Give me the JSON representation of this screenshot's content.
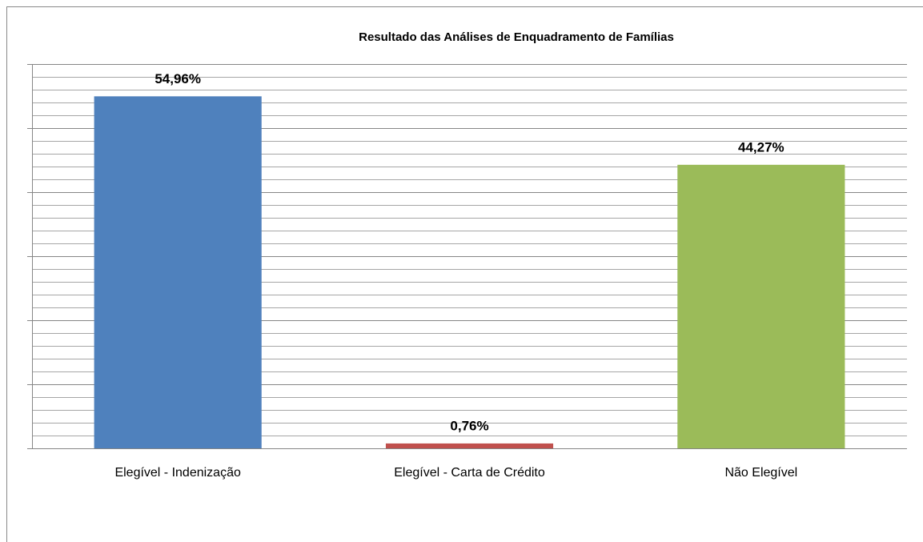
{
  "chart_data": {
    "type": "bar",
    "title": "Resultado das Análises de Enquadramento de Famílias",
    "categories": [
      "Elegível - Indenização",
      "Elegível - Carta de Crédito",
      "Não Elegível"
    ],
    "values": [
      54.96,
      0.76,
      44.27
    ],
    "value_labels": [
      "54,96%",
      "0,76%",
      "44,27%"
    ],
    "colors": [
      "#4f81bd",
      "#c0504d",
      "#9bbb59"
    ],
    "ylim": [
      0,
      60
    ],
    "yticks": [
      0,
      10,
      20,
      30,
      40,
      50,
      60
    ],
    "minor_yticks": [
      2,
      4,
      6,
      8,
      12,
      14,
      16,
      18,
      22,
      24,
      26,
      28,
      32,
      34,
      36,
      38,
      42,
      44,
      46,
      48,
      52,
      54,
      56,
      58
    ],
    "grid": true
  }
}
